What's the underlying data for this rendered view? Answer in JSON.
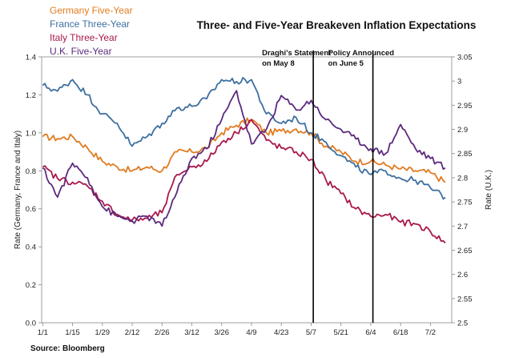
{
  "chart_data": {
    "type": "line",
    "title": "Three- and Five-Year Breakeven Inflation Expectations",
    "source": "Source: Bloomberg",
    "xlabel": "",
    "ylabel_left": "Rate (Germany, France and Italy)",
    "ylabel_right": "Rate (U.K.)",
    "x_ticks": [
      "1/1",
      "1/15",
      "1/29",
      "2/12",
      "2/26",
      "3/12",
      "3/26",
      "4/9",
      "4/23",
      "5/7",
      "5/21",
      "6/4",
      "6/18",
      "7/2"
    ],
    "y_left": {
      "min": 0.0,
      "max": 1.4,
      "ticks": [
        "0.0",
        "0.2",
        "0.4",
        "0.6",
        "0.8",
        "1.0",
        "1.2",
        "1.4"
      ]
    },
    "y_right": {
      "min": 2.5,
      "max": 3.05,
      "ticks": [
        "2.5",
        "2.55",
        "2.6",
        "2.65",
        "2.7",
        "2.75",
        "2.8",
        "2.85",
        "2.9",
        "2.95",
        "3",
        "3.05"
      ]
    },
    "grid": false,
    "legend_position": "top-left",
    "series": [
      {
        "name": "Germany Five-Year",
        "axis": "left",
        "color": "#E07B20",
        "points": [
          [
            "1/1",
            0.98
          ],
          [
            "1/8",
            0.97
          ],
          [
            "1/15",
            0.98
          ],
          [
            "1/22",
            0.92
          ],
          [
            "1/29",
            0.85
          ],
          [
            "2/5",
            0.82
          ],
          [
            "2/12",
            0.8
          ],
          [
            "2/19",
            0.82
          ],
          [
            "2/26",
            0.8
          ],
          [
            "3/5",
            0.9
          ],
          [
            "3/12",
            0.9
          ],
          [
            "3/19",
            0.92
          ],
          [
            "3/26",
            1.0
          ],
          [
            "4/2",
            1.04
          ],
          [
            "4/9",
            1.07
          ],
          [
            "4/16",
            1.0
          ],
          [
            "4/23",
            1.01
          ],
          [
            "4/30",
            1.02
          ],
          [
            "5/7",
            1.0
          ],
          [
            "5/14",
            0.93
          ],
          [
            "5/21",
            0.9
          ],
          [
            "5/28",
            0.85
          ],
          [
            "6/4",
            0.85
          ],
          [
            "6/11",
            0.83
          ],
          [
            "6/18",
            0.81
          ],
          [
            "6/25",
            0.8
          ],
          [
            "7/2",
            0.79
          ],
          [
            "7/9",
            0.74
          ]
        ]
      },
      {
        "name": "France Three-Year",
        "axis": "left",
        "color": "#3D6FA0",
        "points": [
          [
            "1/1",
            1.25
          ],
          [
            "1/8",
            1.22
          ],
          [
            "1/15",
            1.28
          ],
          [
            "1/22",
            1.2
          ],
          [
            "1/29",
            1.1
          ],
          [
            "2/5",
            1.05
          ],
          [
            "2/12",
            0.93
          ],
          [
            "2/19",
            0.98
          ],
          [
            "2/26",
            1.05
          ],
          [
            "3/5",
            1.13
          ],
          [
            "3/12",
            1.14
          ],
          [
            "3/19",
            1.18
          ],
          [
            "3/26",
            1.28
          ],
          [
            "4/2",
            1.27
          ],
          [
            "4/9",
            1.28
          ],
          [
            "4/16",
            1.1
          ],
          [
            "4/23",
            1.05
          ],
          [
            "4/30",
            1.08
          ],
          [
            "5/7",
            1.0
          ],
          [
            "5/14",
            0.95
          ],
          [
            "5/21",
            0.88
          ],
          [
            "5/28",
            0.82
          ],
          [
            "6/4",
            0.78
          ],
          [
            "6/11",
            0.8
          ],
          [
            "6/18",
            0.76
          ],
          [
            "6/25",
            0.75
          ],
          [
            "7/2",
            0.71
          ],
          [
            "7/9",
            0.66
          ]
        ]
      },
      {
        "name": "Italy Three-Year",
        "axis": "left",
        "color": "#A8194D",
        "points": [
          [
            "1/1",
            0.82
          ],
          [
            "1/8",
            0.76
          ],
          [
            "1/15",
            0.74
          ],
          [
            "1/22",
            0.72
          ],
          [
            "1/29",
            0.64
          ],
          [
            "2/5",
            0.57
          ],
          [
            "2/12",
            0.54
          ],
          [
            "2/19",
            0.55
          ],
          [
            "2/26",
            0.58
          ],
          [
            "3/5",
            0.78
          ],
          [
            "3/12",
            0.82
          ],
          [
            "3/19",
            0.85
          ],
          [
            "3/26",
            0.95
          ],
          [
            "4/2",
            1.0
          ],
          [
            "4/9",
            1.07
          ],
          [
            "4/16",
            0.96
          ],
          [
            "4/23",
            0.92
          ],
          [
            "4/30",
            0.9
          ],
          [
            "5/7",
            0.86
          ],
          [
            "5/14",
            0.75
          ],
          [
            "5/21",
            0.68
          ],
          [
            "5/28",
            0.6
          ],
          [
            "6/4",
            0.56
          ],
          [
            "6/11",
            0.57
          ],
          [
            "6/18",
            0.53
          ],
          [
            "6/25",
            0.52
          ],
          [
            "7/2",
            0.48
          ],
          [
            "7/9",
            0.42
          ]
        ]
      },
      {
        "name": "U.K. Five-Year",
        "axis": "right",
        "color": "#5C2A7E",
        "points": [
          [
            "1/1",
            2.82
          ],
          [
            "1/8",
            2.76
          ],
          [
            "1/15",
            2.83
          ],
          [
            "1/22",
            2.8
          ],
          [
            "1/29",
            2.74
          ],
          [
            "2/5",
            2.72
          ],
          [
            "2/12",
            2.71
          ],
          [
            "2/19",
            2.72
          ],
          [
            "2/26",
            2.7
          ],
          [
            "3/5",
            2.77
          ],
          [
            "3/12",
            2.84
          ],
          [
            "3/19",
            2.86
          ],
          [
            "3/26",
            2.92
          ],
          [
            "4/2",
            2.98
          ],
          [
            "4/9",
            2.87
          ],
          [
            "4/16",
            2.9
          ],
          [
            "4/23",
            2.97
          ],
          [
            "4/30",
            2.94
          ],
          [
            "5/7",
            2.96
          ],
          [
            "5/14",
            2.92
          ],
          [
            "5/21",
            2.9
          ],
          [
            "5/28",
            2.88
          ],
          [
            "6/4",
            2.86
          ],
          [
            "6/11",
            2.85
          ],
          [
            "6/18",
            2.91
          ],
          [
            "6/25",
            2.86
          ],
          [
            "7/2",
            2.84
          ],
          [
            "7/9",
            2.82
          ]
        ]
      }
    ],
    "annotations": [
      {
        "lines": [
          "Draghi's Statement",
          "on May 8"
        ],
        "at": "5/8"
      },
      {
        "lines": [
          "Policy Announced",
          "on June 5"
        ],
        "at": "6/5"
      }
    ]
  }
}
